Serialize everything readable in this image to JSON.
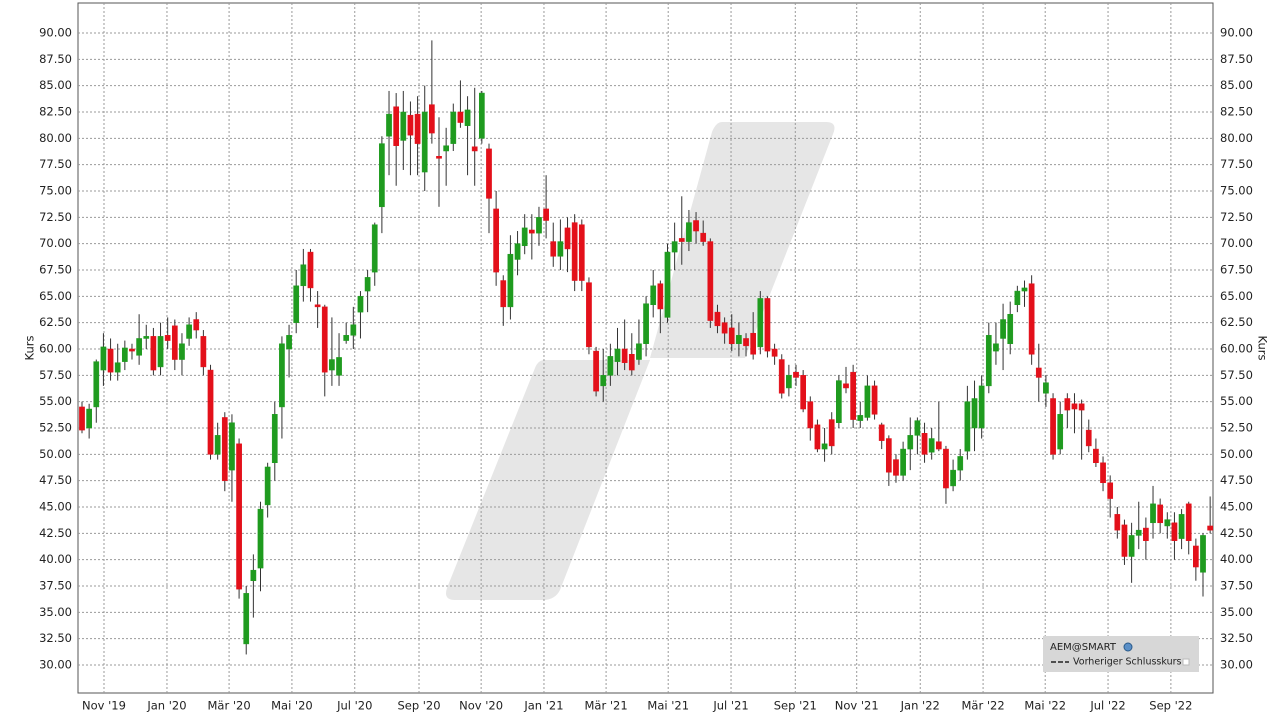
{
  "chart_data": {
    "type": "candlestick",
    "y_label": "Kurs",
    "ylim": [
      27.34,
      92.85
    ],
    "yticks": [
      {
        "value": 30,
        "label": "30.00"
      },
      {
        "value": 32.5,
        "label": "32.50"
      },
      {
        "value": 35,
        "label": "35.00"
      },
      {
        "value": 37.5,
        "label": "37.50"
      },
      {
        "value": 40,
        "label": "40.00"
      },
      {
        "value": 42.5,
        "label": "42.50"
      },
      {
        "value": 45,
        "label": "45.00"
      },
      {
        "value": 47.5,
        "label": "47.50"
      },
      {
        "value": 50,
        "label": "50.00"
      },
      {
        "value": 52.5,
        "label": "52.50"
      },
      {
        "value": 55,
        "label": "55.00"
      },
      {
        "value": 57.5,
        "label": "57.50"
      },
      {
        "value": 60,
        "label": "60.00"
      },
      {
        "value": 62.5,
        "label": "62.50"
      },
      {
        "value": 65,
        "label": "65.00"
      },
      {
        "value": 67.5,
        "label": "67.50"
      },
      {
        "value": 70,
        "label": "70.00"
      },
      {
        "value": 72.5,
        "label": "72.50"
      },
      {
        "value": 75,
        "label": "75.00"
      },
      {
        "value": 77.5,
        "label": "77.50"
      },
      {
        "value": 80,
        "label": "80.00"
      },
      {
        "value": 82.5,
        "label": "82.50"
      },
      {
        "value": 85,
        "label": "85.00"
      },
      {
        "value": 87.5,
        "label": "87.50"
      },
      {
        "value": 90,
        "label": "90.00"
      }
    ],
    "xlim": [
      -0.56,
      158.4
    ],
    "xticks": [
      {
        "value": 3.08,
        "label": "Nov '19"
      },
      {
        "value": 11.9,
        "label": "Jan '20"
      },
      {
        "value": 20.6,
        "label": "Mär '20"
      },
      {
        "value": 29.4,
        "label": "Mai '20"
      },
      {
        "value": 38.2,
        "label": "Jul '20"
      },
      {
        "value": 47.2,
        "label": "Sep '20"
      },
      {
        "value": 55.9,
        "label": "Nov '20"
      },
      {
        "value": 64.7,
        "label": "Jan '21"
      },
      {
        "value": 73.4,
        "label": "Mär '21"
      },
      {
        "value": 82.1,
        "label": "Mai '21"
      },
      {
        "value": 90.9,
        "label": "Jul '21"
      },
      {
        "value": 99.9,
        "label": "Sep '21"
      },
      {
        "value": 108.5,
        "label": "Nov '21"
      },
      {
        "value": 117.4,
        "label": "Jan '22"
      },
      {
        "value": 126.2,
        "label": "Mär '22"
      },
      {
        "value": 134.9,
        "label": "Mai '22"
      },
      {
        "value": 143.7,
        "label": "Jul '22"
      },
      {
        "value": 152.5,
        "label": "Sep '22"
      }
    ],
    "grid": true,
    "reference_line": {
      "name": "Vorheriger Schlusskurs"
    },
    "series": [
      {
        "name": "AEM@SMART",
        "up_color": "#1f9b1f",
        "down_color": "#e3101a",
        "values": [
          [
            54.5,
            55,
            52,
            52.3
          ],
          [
            52.5,
            54.8,
            51.5,
            54.3
          ],
          [
            54.5,
            59,
            53,
            58.8
          ],
          [
            58,
            61.5,
            56.5,
            60.2
          ],
          [
            60,
            61,
            57,
            57.8
          ],
          [
            57.8,
            60.5,
            57,
            58.7
          ],
          [
            58.8,
            60.8,
            58,
            60.1
          ],
          [
            60,
            60.5,
            59,
            59.8
          ],
          [
            59.4,
            63.3,
            58.5,
            61
          ],
          [
            61,
            62.3,
            60,
            61.2
          ],
          [
            61.2,
            62,
            57.5,
            58
          ],
          [
            58.3,
            62.5,
            57.5,
            61.2
          ],
          [
            61.3,
            63,
            60,
            60.8
          ],
          [
            62.2,
            62.8,
            58,
            59
          ],
          [
            59,
            61.5,
            57.5,
            60.5
          ],
          [
            61,
            63,
            60.3,
            62.3
          ],
          [
            62.8,
            63.5,
            61,
            61.8
          ],
          [
            61.2,
            61.8,
            57.5,
            58.3
          ],
          [
            58,
            58.5,
            49.5,
            50
          ],
          [
            50,
            53,
            49.5,
            51.8
          ],
          [
            53.5,
            54,
            46.5,
            47.5
          ],
          [
            48.5,
            53.8,
            45.5,
            53
          ],
          [
            51,
            51.5,
            36.3,
            37.2
          ],
          [
            32,
            37.5,
            31,
            36.8
          ],
          [
            38,
            40.5,
            34.5,
            39
          ],
          [
            39.2,
            45.5,
            37,
            44.8
          ],
          [
            45.2,
            49.2,
            44,
            48.8
          ],
          [
            49.2,
            55,
            47.5,
            53.8
          ],
          [
            54.5,
            61.2,
            51.5,
            60.5
          ],
          [
            60,
            62.3,
            57.3,
            61.3
          ],
          [
            62.5,
            67.5,
            61.5,
            66
          ],
          [
            66,
            69.5,
            64.5,
            68
          ],
          [
            69.2,
            69.5,
            64.5,
            65.8
          ],
          [
            64.2,
            65.5,
            62,
            64
          ],
          [
            64,
            64.2,
            55.5,
            57.8
          ],
          [
            58,
            63,
            56.5,
            59
          ],
          [
            57.5,
            61.5,
            56.5,
            59.2
          ],
          [
            60.8,
            62.5,
            60.5,
            61.3
          ],
          [
            61.3,
            64,
            60,
            62.3
          ],
          [
            63.5,
            65.5,
            61,
            65
          ],
          [
            65.5,
            67.5,
            63.5,
            66.8
          ],
          [
            67.3,
            72,
            66,
            71.8
          ],
          [
            73.5,
            80.2,
            71,
            79.5
          ],
          [
            80.2,
            84.5,
            76.5,
            82.3
          ],
          [
            83,
            84.3,
            75.5,
            79.3
          ],
          [
            79.8,
            84.5,
            77,
            82.5
          ],
          [
            82.2,
            83.5,
            76.5,
            80.3
          ],
          [
            82.3,
            84,
            76.5,
            79.5
          ],
          [
            76.8,
            85,
            75,
            82.5
          ],
          [
            83.2,
            89.3,
            79.5,
            80.5
          ],
          [
            78.3,
            82,
            73.5,
            78.1
          ],
          [
            78.8,
            81,
            75.5,
            79.3
          ],
          [
            79.5,
            83.3,
            78.8,
            82.5
          ],
          [
            82.5,
            85.5,
            81,
            81.5
          ],
          [
            81.2,
            84,
            76.5,
            82.7
          ],
          [
            79.2,
            84.8,
            75.5,
            78.8
          ],
          [
            80,
            84.5,
            79.5,
            84.3
          ],
          [
            79,
            79.5,
            71,
            74.3
          ],
          [
            73.3,
            75,
            66,
            67.3
          ],
          [
            66.5,
            67,
            62.2,
            64
          ],
          [
            64,
            70.8,
            62.8,
            69
          ],
          [
            68.5,
            71.2,
            67,
            70
          ],
          [
            69.8,
            72.8,
            69,
            71.5
          ],
          [
            71.3,
            72.8,
            68.5,
            71
          ],
          [
            71,
            73.5,
            69.8,
            72.5
          ],
          [
            73.3,
            76.5,
            70.5,
            72.2
          ],
          [
            70.2,
            72,
            67.8,
            68.8
          ],
          [
            68.8,
            72.3,
            67.5,
            70.2
          ],
          [
            71.5,
            72.5,
            67.3,
            69.5
          ],
          [
            72,
            72.8,
            65.5,
            66.5
          ],
          [
            71.8,
            72.3,
            65.5,
            66.5
          ],
          [
            66.3,
            66.8,
            59.5,
            60.2
          ],
          [
            59.8,
            60.2,
            55.5,
            56
          ],
          [
            56.5,
            60,
            55,
            57.5
          ],
          [
            57.5,
            60.5,
            56.5,
            59.3
          ],
          [
            58.8,
            62,
            57.5,
            60
          ],
          [
            60,
            62.8,
            58,
            58.7
          ],
          [
            59.5,
            61.5,
            57.5,
            58
          ],
          [
            59,
            62.8,
            58.5,
            60.5
          ],
          [
            60.5,
            65,
            59.3,
            64.3
          ],
          [
            64.2,
            67.5,
            63,
            66
          ],
          [
            66.2,
            66.5,
            61.5,
            63.8
          ],
          [
            63,
            70,
            62.5,
            69.2
          ],
          [
            69.2,
            72,
            67.5,
            70.2
          ],
          [
            70.5,
            74.5,
            68,
            70.2
          ],
          [
            70.2,
            73.2,
            69.3,
            72
          ],
          [
            72.2,
            73,
            70,
            71.2
          ],
          [
            71,
            72.2,
            69.8,
            70.2
          ],
          [
            70.2,
            70.5,
            62,
            62.7
          ],
          [
            63.5,
            64.2,
            61.5,
            62.2
          ],
          [
            62.5,
            63,
            60.5,
            61.5
          ],
          [
            62,
            63.3,
            59.8,
            60.5
          ],
          [
            60.5,
            62.5,
            59.3,
            61.3
          ],
          [
            61,
            61.5,
            59.3,
            60.3
          ],
          [
            61.5,
            63.5,
            59,
            59.5
          ],
          [
            60.2,
            65.5,
            59.5,
            64.8
          ],
          [
            64.8,
            65,
            59.2,
            59.8
          ],
          [
            60,
            60.5,
            58.5,
            59.3
          ],
          [
            59,
            59.5,
            55.3,
            55.8
          ],
          [
            56.3,
            58.5,
            55.5,
            57.5
          ],
          [
            57.8,
            58.5,
            56.5,
            57.3
          ],
          [
            57.5,
            58,
            54,
            54.3
          ],
          [
            55,
            55.5,
            51.3,
            52.5
          ],
          [
            52.8,
            53.3,
            50.2,
            50.5
          ],
          [
            50.5,
            52.5,
            49.3,
            51
          ],
          [
            53.3,
            54,
            50,
            50.8
          ],
          [
            53,
            57.5,
            52.5,
            57
          ],
          [
            56.7,
            58.3,
            55.8,
            56.3
          ],
          [
            57.8,
            58.5,
            52.5,
            53.3
          ],
          [
            53.2,
            55,
            52.5,
            53.7
          ],
          [
            53.5,
            57.5,
            53.2,
            56.5
          ],
          [
            56.5,
            57,
            53.3,
            53.8
          ],
          [
            52.8,
            53,
            50.5,
            51.3
          ],
          [
            51.5,
            51.8,
            47,
            48.3
          ],
          [
            49.5,
            50,
            47.3,
            48
          ],
          [
            48,
            51.2,
            47.5,
            50.5
          ],
          [
            50.5,
            53.5,
            48.5,
            51.8
          ],
          [
            51.8,
            53.5,
            50,
            53.2
          ],
          [
            52,
            53,
            49.2,
            50
          ],
          [
            50.2,
            52.5,
            49.5,
            51.5
          ],
          [
            51.2,
            55,
            50.3,
            50.5
          ],
          [
            50.5,
            50.8,
            45.3,
            46.8
          ],
          [
            47,
            49.5,
            46.5,
            48.5
          ],
          [
            48.5,
            50.5,
            47.5,
            49.8
          ],
          [
            50.3,
            56.5,
            49.5,
            55
          ],
          [
            52.5,
            57,
            50.3,
            55.3
          ],
          [
            52.5,
            57.5,
            51.5,
            56.5
          ],
          [
            56.5,
            62.5,
            55.8,
            61.3
          ],
          [
            59.8,
            62.5,
            58.5,
            60.5
          ],
          [
            61,
            64.3,
            58,
            62.8
          ],
          [
            60.5,
            64.5,
            59.5,
            63.3
          ],
          [
            64.2,
            66,
            63.5,
            65.5
          ],
          [
            65.5,
            66.5,
            64,
            65.8
          ],
          [
            66.2,
            67,
            58.5,
            59.5
          ],
          [
            58.2,
            60.5,
            55,
            57.3
          ],
          [
            55.8,
            57.5,
            54.5,
            56.8
          ],
          [
            55.3,
            55.8,
            49.5,
            50
          ],
          [
            50.5,
            55,
            50,
            53.8
          ],
          [
            55.3,
            55.8,
            52.5,
            54.2
          ],
          [
            54.8,
            55.8,
            52,
            54.3
          ],
          [
            54.8,
            55.2,
            49.5,
            54.2
          ],
          [
            52.3,
            53.3,
            50.2,
            50.8
          ],
          [
            50.5,
            51.5,
            48.8,
            49.2
          ],
          [
            49.2,
            49.8,
            46.5,
            47.3
          ],
          [
            47.3,
            48,
            44,
            45.8
          ],
          [
            44.3,
            45,
            42,
            42.8
          ],
          [
            43.3,
            43.8,
            39.5,
            40.3
          ],
          [
            40.3,
            43.5,
            37.8,
            42.3
          ],
          [
            42.3,
            45.5,
            41,
            42.8
          ],
          [
            43,
            44,
            40,
            41.8
          ],
          [
            43.5,
            47,
            42,
            45.3
          ],
          [
            45.2,
            45.8,
            42.5,
            43.5
          ],
          [
            43.2,
            44.5,
            42,
            43.8
          ],
          [
            43.5,
            44.5,
            40,
            41.8
          ],
          [
            42,
            44.8,
            41,
            44.3
          ],
          [
            45.3,
            45.5,
            40.5,
            41.8
          ],
          [
            41.3,
            42,
            38,
            39.3
          ],
          [
            38.8,
            42.5,
            36.5,
            42.3
          ],
          [
            43.2,
            46,
            42.5,
            42.8
          ]
        ]
      }
    ]
  }
}
